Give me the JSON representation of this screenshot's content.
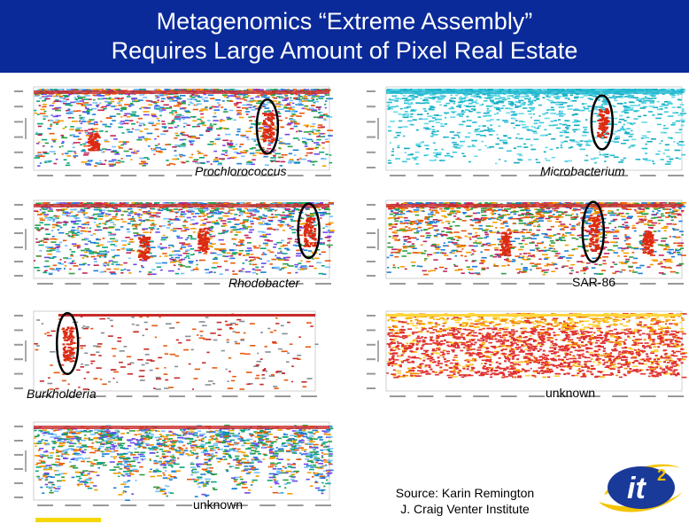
{
  "slide": {
    "title_line1": "Metagenomics “Extreme Assembly”",
    "title_line2": "Requires Large Amount of Pixel Real Estate",
    "source_line1": "Source: Karin Remington",
    "source_line2": "J. Craig Venter Institute",
    "logo_text": "it",
    "logo_superscript": "2"
  },
  "panels": [
    {
      "name": "panel-prochlorococcus",
      "label": "Prochlorococcus",
      "italic": true,
      "style": "multi"
    },
    {
      "name": "panel-microbacterium",
      "label": "Microbacterium",
      "italic": true,
      "style": "blue"
    },
    {
      "name": "panel-rhodobacter",
      "label": "Rhodobacter",
      "italic": true,
      "style": "multi"
    },
    {
      "name": "panel-sar86",
      "label": "SAR-86",
      "italic": false,
      "style": "multi-sparse"
    },
    {
      "name": "panel-burkholderia",
      "label": "Burkholderia",
      "italic": true,
      "style": "sparse"
    },
    {
      "name": "panel-unknown-1",
      "label": "unknown",
      "italic": false,
      "style": "yellow-red"
    },
    {
      "name": "panel-unknown-2",
      "label": "unknown",
      "italic": false,
      "style": "multi-wave"
    }
  ],
  "colors": {
    "title_background": "#0a2a9a",
    "title_text": "#ffffff",
    "highlight_red": "#dd2a12",
    "logo_blue": "#1a3a9a",
    "logo_yellow": "#f5c400"
  }
}
